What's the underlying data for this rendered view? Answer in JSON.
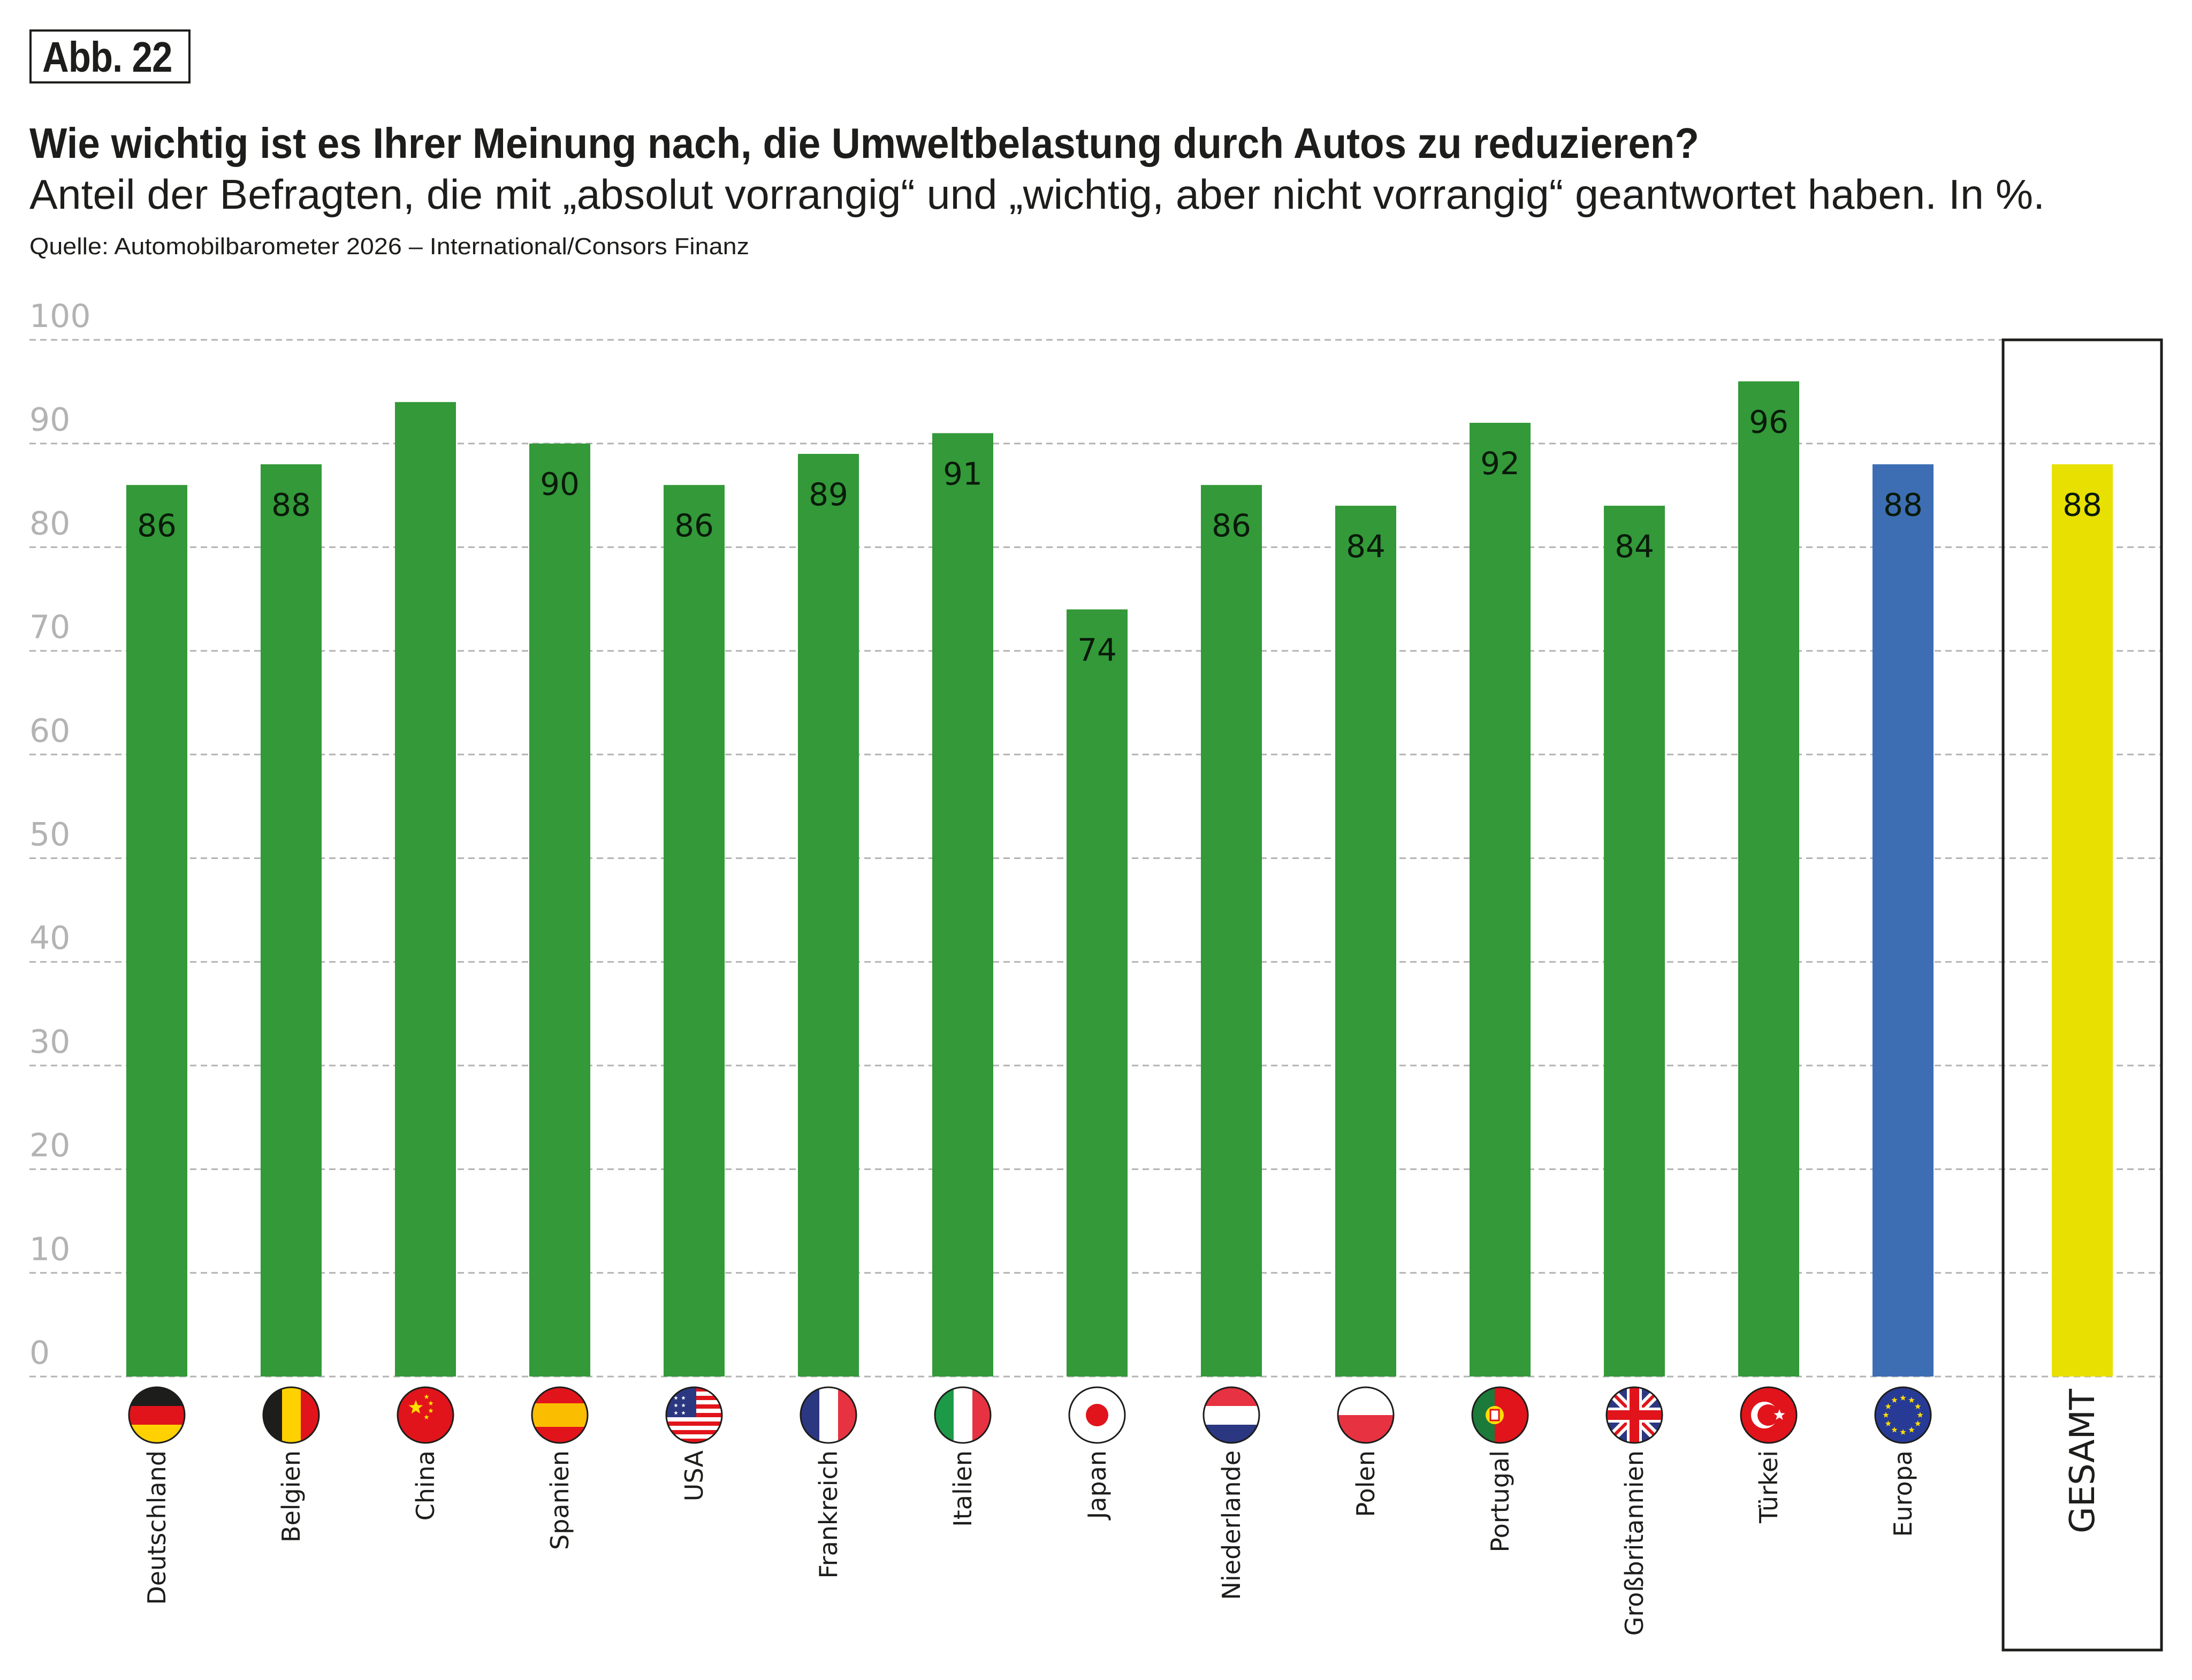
{
  "figure_label": "Abb. 22",
  "header": {
    "title": "Wie wichtig ist es Ihrer Meinung nach, die Umweltbelastung durch Autos zu reduzieren?",
    "subtitle": "Anteil der Befragten, die mit „absolut vorrangig“ und „wichtig, aber nicht vorrangig“ geantwortet haben. In %.",
    "source": "Quelle: Automobilbarometer 2026 – International/Consors Finanz"
  },
  "colors": {
    "country_bar": "#339939",
    "europe_bar": "#3d6eb4",
    "total_bar": "#e8e000",
    "gridline": "#b3b3b3",
    "tick_text": "#b3b3b3",
    "text": "#1d1d1b"
  },
  "chart_data": {
    "type": "bar",
    "title": "Wie wichtig ist es Ihrer Meinung nach, die Umweltbelastung durch Autos zu reduzieren?",
    "xlabel": "",
    "ylabel": "",
    "ylim": [
      0,
      100
    ],
    "yticks": [
      0,
      10,
      20,
      30,
      40,
      50,
      60,
      70,
      80,
      90,
      100
    ],
    "grid": true,
    "categories": [
      "Deutschland",
      "Belgien",
      "China",
      "Spanien",
      "USA",
      "Frankreich",
      "Italien",
      "Japan",
      "Niederlande",
      "Polen",
      "Portugal",
      "Großbritannien",
      "Türkei",
      "Europa",
      "GESAMT"
    ],
    "values": [
      86,
      88,
      94,
      90,
      86,
      89,
      91,
      74,
      86,
      84,
      92,
      84,
      96,
      88,
      88
    ],
    "data_labels": [
      "86",
      "88",
      "",
      "90",
      "86",
      "89",
      "91",
      "74",
      "86",
      "84",
      "92",
      "84",
      "96",
      "88",
      "88"
    ],
    "bar_kind": [
      "country",
      "country",
      "country",
      "country",
      "country",
      "country",
      "country",
      "country",
      "country",
      "country",
      "country",
      "country",
      "country",
      "europe",
      "total"
    ],
    "flags": [
      "flag-germany-icon",
      "flag-belgium-icon",
      "flag-china-icon",
      "flag-spain-icon",
      "flag-usa-icon",
      "flag-france-icon",
      "flag-italy-icon",
      "flag-japan-icon",
      "flag-netherlands-icon",
      "flag-poland-icon",
      "flag-portugal-icon",
      "flag-uk-icon",
      "flag-turkey-icon",
      "flag-eu-icon",
      ""
    ],
    "highlight_box": "GESAMT"
  }
}
